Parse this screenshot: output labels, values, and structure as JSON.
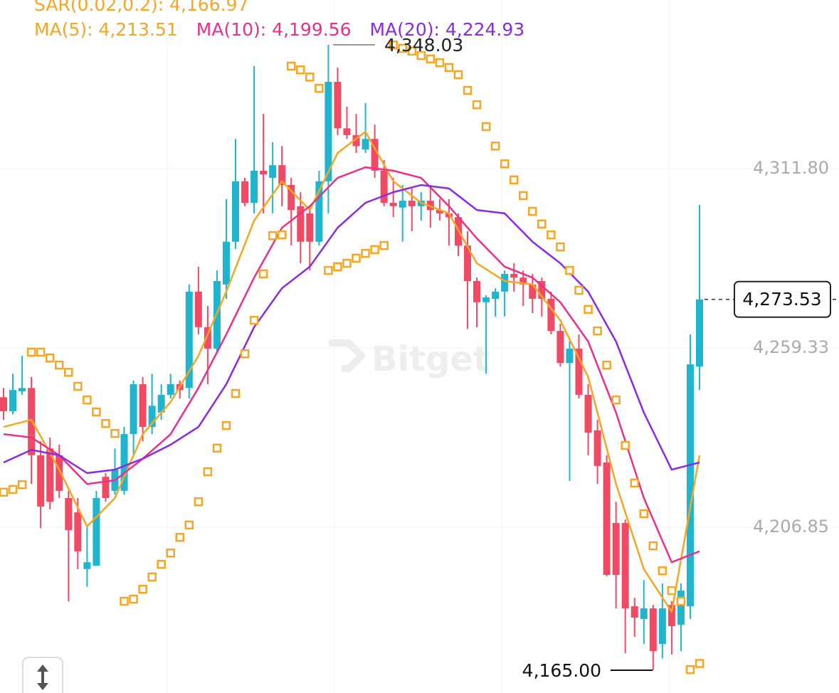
{
  "chart_data": {
    "type": "candlestick",
    "header": "SAR(0.02,0.2): 4,166.97",
    "legend": [
      {
        "text": "MA(5): 4,213.51",
        "color": "#f5a623"
      },
      {
        "text": "MA(10): 4,199.56",
        "color": "#e8308c"
      },
      {
        "text": "MA(20): 4,224.93",
        "color": "#8a2be2"
      }
    ],
    "watermark": "Bitget",
    "up_color": "#1fb5cf",
    "down_color": "#f04a64",
    "ylim": [
      4158.33,
      4361.15
    ],
    "yticks": [
      {
        "value": 4311.8,
        "label": "4,311.80"
      },
      {
        "value": 4259.33,
        "label": "4,259.33"
      },
      {
        "value": 4206.85,
        "label": "4,206.85"
      }
    ],
    "grid": true,
    "high_label": {
      "value": 4348.03,
      "label": "4,348.03"
    },
    "low_label": {
      "value": 4165.0,
      "label": "4,165.00"
    },
    "last_price": {
      "value": 4273.53,
      "label": "4,273.53"
    },
    "candles": [
      [
        4244.9,
        4247.6,
        4238.3,
        4240.8
      ],
      [
        4240.8,
        4251.8,
        4239.9,
        4247.0
      ],
      [
        4246.6,
        4257.0,
        4245.6,
        4247.6
      ],
      [
        4247.6,
        4250.8,
        4219.5,
        4227.9
      ],
      [
        4227.9,
        4232.0,
        4206.6,
        4212.9
      ],
      [
        4229.9,
        4233.1,
        4212.1,
        4214.3
      ],
      [
        4227.9,
        4231.0,
        4215.4,
        4217.5
      ],
      [
        4215.4,
        4217.5,
        4185.2,
        4206.0
      ],
      [
        4211.2,
        4215.4,
        4194.6,
        4199.8
      ],
      [
        4194.6,
        4207.1,
        4189.4,
        4196.6
      ],
      [
        4195.6,
        4217.5,
        4195.6,
        4215.4
      ],
      [
        4221.6,
        4222.7,
        4214.3,
        4215.4
      ],
      [
        4217.5,
        4229.9,
        4216.4,
        4223.7
      ],
      [
        4217.5,
        4236.2,
        4216.4,
        4234.1
      ],
      [
        4234.1,
        4249.8,
        4227.9,
        4248.7
      ],
      [
        4248.7,
        4250.8,
        4232.0,
        4236.2
      ],
      [
        4236.2,
        4251.8,
        4234.1,
        4242.4
      ],
      [
        4240.4,
        4248.7,
        4238.3,
        4245.6
      ],
      [
        4245.6,
        4251.8,
        4244.5,
        4248.7
      ],
      [
        4248.7,
        4249.8,
        4244.5,
        4247.0
      ],
      [
        4247.6,
        4277.9,
        4244.5,
        4275.8
      ],
      [
        4275.8,
        4283.1,
        4263.3,
        4265.4
      ],
      [
        4265.4,
        4271.6,
        4248.7,
        4259.1
      ],
      [
        4259.1,
        4282.0,
        4258.1,
        4278.9
      ],
      [
        4277.9,
        4302.9,
        4273.7,
        4290.4
      ],
      [
        4290.4,
        4320.5,
        4288.3,
        4308.1
      ],
      [
        4308.1,
        4309.1,
        4300.8,
        4301.8
      ],
      [
        4301.8,
        4341.8,
        4298.7,
        4311.2
      ],
      [
        4311.2,
        4327.8,
        4298.7,
        4310.1
      ],
      [
        4309.1,
        4319.5,
        4298.7,
        4312.8
      ],
      [
        4312.8,
        4318.4,
        4300.8,
        4307.0
      ],
      [
        4307.0,
        4309.1,
        4289.3,
        4299.7
      ],
      [
        4300.8,
        4304.9,
        4284.1,
        4290.4
      ],
      [
        4298.7,
        4300.8,
        4282.0,
        4290.4
      ],
      [
        4290.4,
        4311.2,
        4289.3,
        4308.1
      ],
      [
        4308.1,
        4348.03,
        4298.7,
        4337.2
      ],
      [
        4337.2,
        4341.4,
        4321.6,
        4323.6
      ],
      [
        4323.6,
        4329.9,
        4320.5,
        4321.6
      ],
      [
        4321.6,
        4327.8,
        4316.4,
        4318.4
      ],
      [
        4317.4,
        4331.0,
        4316.4,
        4320.5
      ],
      [
        4320.5,
        4324.7,
        4309.1,
        4311.2
      ],
      [
        4311.2,
        4314.3,
        4300.8,
        4301.8
      ],
      [
        4301.8,
        4309.1,
        4297.6,
        4300.8
      ],
      [
        4300.4,
        4307.0,
        4290.4,
        4302.4
      ],
      [
        4302.4,
        4306.0,
        4293.5,
        4300.8
      ],
      [
        4300.8,
        4304.9,
        4296.6,
        4302.4
      ],
      [
        4302.4,
        4307.0,
        4294.5,
        4299.7
      ],
      [
        4299.7,
        4302.9,
        4296.6,
        4298.7
      ],
      [
        4298.7,
        4302.9,
        4289.3,
        4297.6
      ],
      [
        4297.6,
        4298.7,
        4286.2,
        4289.3
      ],
      [
        4289.3,
        4293.5,
        4264.9,
        4278.9
      ],
      [
        4278.9,
        4279.9,
        4265.4,
        4272.7
      ],
      [
        4272.7,
        4274.7,
        4251.8,
        4274.1
      ],
      [
        4273.7,
        4276.8,
        4268.5,
        4275.8
      ],
      [
        4275.8,
        4282.0,
        4268.5,
        4281.0
      ],
      [
        4281.0,
        4284.1,
        4275.8,
        4279.9
      ],
      [
        4279.9,
        4282.0,
        4271.6,
        4277.9
      ],
      [
        4277.9,
        4281.0,
        4269.5,
        4273.7
      ],
      [
        4278.9,
        4279.9,
        4268.5,
        4273.7
      ],
      [
        4273.7,
        4275.8,
        4263.3,
        4264.3
      ],
      [
        4264.3,
        4266.4,
        4253.9,
        4254.9
      ],
      [
        4254.9,
        4261.2,
        4220.4,
        4259.1
      ],
      [
        4259.1,
        4263.3,
        4244.5,
        4245.6
      ],
      [
        4245.6,
        4248.7,
        4227.9,
        4234.5
      ],
      [
        4235.2,
        4238.3,
        4219.5,
        4224.8
      ],
      [
        4225.8,
        4227.9,
        4192.5,
        4192.9
      ],
      [
        4208.1,
        4214.3,
        4183.1,
        4192.9
      ],
      [
        4208.1,
        4209.1,
        4170.0,
        4183.1
      ],
      [
        4183.7,
        4186.2,
        4174.8,
        4180.4
      ],
      [
        4180.0,
        4191.4,
        4172.7,
        4183.1
      ],
      [
        4183.1,
        4184.1,
        4165.0,
        4170.6
      ],
      [
        4172.7,
        4190.4,
        4168.5,
        4183.1
      ],
      [
        4184.1,
        4185.2,
        4169.6,
        4177.9
      ],
      [
        4178.3,
        4190.4,
        4170.6,
        4188.3
      ],
      [
        4183.7,
        4263.3,
        4180.0,
        4254.5
      ],
      [
        4253.9,
        4301.2,
        4247.0,
        4273.53
      ]
    ],
    "ma_series": [
      {
        "color": "#f5a623",
        "x": [
          0,
          3,
          6,
          9,
          12,
          15,
          18,
          21,
          24,
          27,
          30,
          33,
          36,
          39,
          42,
          45,
          48,
          51,
          54,
          57,
          60,
          63,
          66,
          69,
          72,
          75
        ],
        "values": [
          4236.2,
          4238.3,
          4223.7,
          4207.1,
          4215.4,
          4234.1,
          4243.5,
          4257.0,
          4275.8,
          4296.6,
          4308.1,
          4299.7,
          4316.4,
          4322.6,
          4308.1,
          4301.8,
          4298.7,
          4284.1,
          4278.9,
          4277.9,
          4267.4,
          4250.8,
          4219.5,
          4194.6,
          4182.1,
          4227.9
        ]
      },
      {
        "color": "#e8308c",
        "x": [
          0,
          3,
          6,
          9,
          12,
          15,
          18,
          21,
          24,
          27,
          30,
          33,
          36,
          39,
          42,
          45,
          48,
          51,
          54,
          57,
          60,
          63,
          66,
          69,
          72,
          75
        ],
        "values": [
          4234.1,
          4233.1,
          4227.9,
          4219.5,
          4220.6,
          4226.9,
          4234.1,
          4247.6,
          4263.3,
          4279.9,
          4294.5,
          4300.8,
          4309.1,
          4312.2,
          4311.2,
          4309.1,
          4300.8,
          4291.4,
          4283.1,
          4279.9,
          4272.7,
          4261.2,
          4240.4,
          4215.4,
          4196.6,
          4199.8
        ]
      },
      {
        "color": "#8a2be2",
        "x": [
          0,
          3,
          6,
          9,
          12,
          15,
          18,
          21,
          24,
          27,
          30,
          33,
          36,
          39,
          42,
          45,
          48,
          51,
          54,
          57,
          60,
          63,
          66,
          69,
          72,
          75
        ],
        "values": [
          4225.8,
          4229.5,
          4227.9,
          4222.7,
          4223.7,
          4226.9,
          4231.0,
          4236.2,
          4248.7,
          4265.4,
          4276.8,
          4283.1,
          4294.5,
          4301.8,
          4304.9,
          4307.0,
          4306.0,
          4299.7,
          4298.7,
          4290.4,
          4284.1,
          4275.8,
          4261.2,
          4240.4,
          4223.7,
          4225.8
        ]
      }
    ],
    "sar": {
      "color": "#f5a623",
      "values": [
        4217.1,
        4217.9,
        4219.3,
        4258.1,
        4258.1,
        4256.4,
        4254.3,
        4252.2,
        4248.1,
        4244.1,
        4240.6,
        4237.2,
        4234.3,
        4185.2,
        4185.8,
        4188.7,
        4192.3,
        4196.0,
        4199.3,
        4203.9,
        4207.5,
        4214.3,
        4223.1,
        4230.0,
        4236.6,
        4246.0,
        4257.6,
        4267.4,
        4281.0,
        4292.2,
        4292.4,
        4341.8,
        4340.7,
        4338.6,
        4335.3,
        4282.0,
        4283.1,
        4284.1,
        4285.6,
        4287.0,
        4288.1,
        4289.3,
        4348.0,
        4347.0,
        4346.2,
        4344.9,
        4343.9,
        4342.8,
        4341.4,
        4339.3,
        4334.7,
        4330.5,
        4324.1,
        4318.4,
        4313.2,
        4308.5,
        4303.9,
        4299.3,
        4295.6,
        4292.4,
        4288.9,
        4282.0,
        4276.2,
        4270.6,
        4264.3,
        4254.3,
        4244.1,
        4230.8,
        4219.8,
        4210.8,
        4201.4,
        4194.1,
        4188.3,
        4185.2,
        4165.2,
        4166.97
      ]
    }
  }
}
